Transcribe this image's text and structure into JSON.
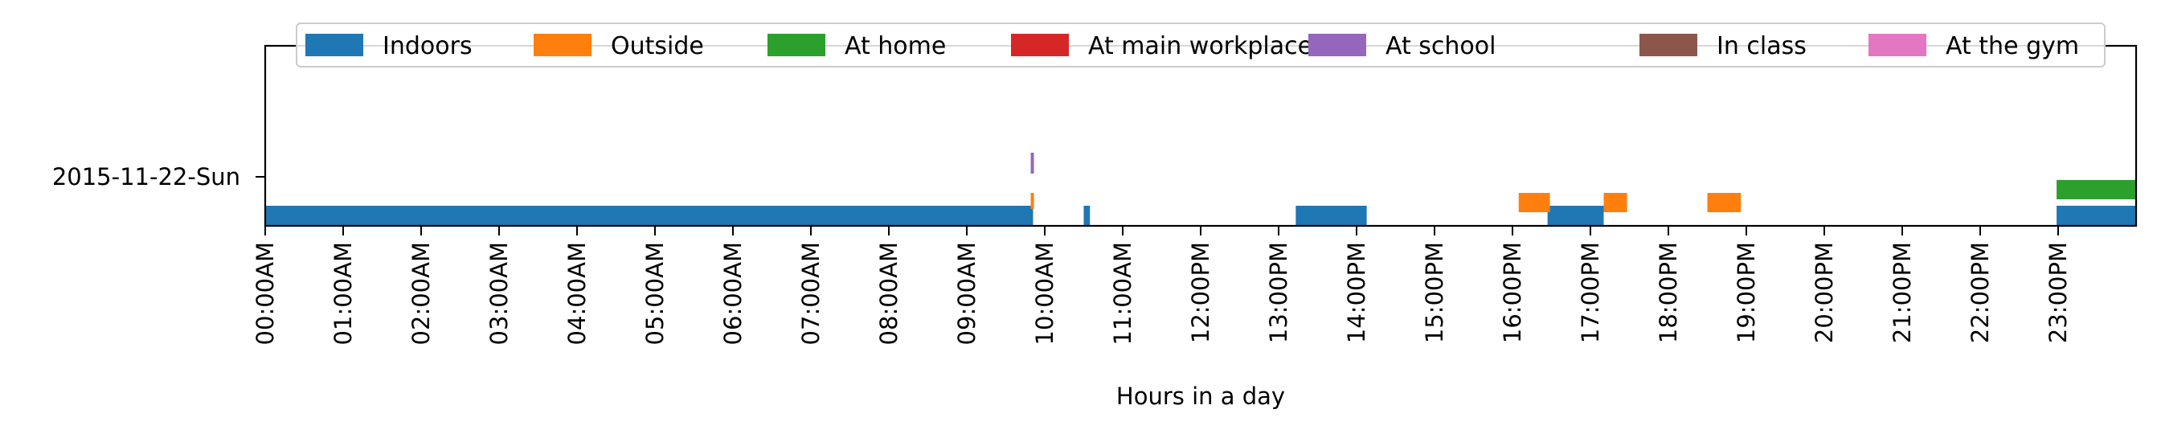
{
  "chart_data": {
    "type": "timeline",
    "xlabel": "Hours in a day",
    "ylabel": "",
    "title": "",
    "row_label": "2015-11-22-Sun",
    "xlim": [
      0,
      24
    ],
    "x_tick_labels": [
      "00:00AM",
      "01:00AM",
      "02:00AM",
      "03:00AM",
      "04:00AM",
      "05:00AM",
      "06:00AM",
      "07:00AM",
      "08:00AM",
      "09:00AM",
      "10:00AM",
      "11:00AM",
      "12:00PM",
      "13:00PM",
      "14:00PM",
      "15:00PM",
      "16:00PM",
      "17:00PM",
      "18:00PM",
      "19:00PM",
      "20:00PM",
      "21:00PM",
      "22:00PM",
      "23:00PM"
    ],
    "legend_position": "top",
    "series": [
      {
        "name": "Indoors",
        "color": "#1f77b4",
        "intervals": [
          [
            0.0,
            9.85
          ],
          [
            10.5,
            10.58
          ],
          [
            13.22,
            14.13
          ],
          [
            16.45,
            17.17
          ],
          [
            22.98,
            24.0
          ]
        ]
      },
      {
        "name": "Outside",
        "color": "#ff7f0e",
        "intervals": [
          [
            9.82,
            9.86
          ],
          [
            16.08,
            16.48
          ],
          [
            17.17,
            17.47
          ],
          [
            18.5,
            18.93
          ]
        ]
      },
      {
        "name": "At home",
        "color": "#2ca02c",
        "intervals": [
          [
            22.98,
            24.0
          ]
        ]
      },
      {
        "name": "At main workplace",
        "color": "#d62728",
        "intervals": []
      },
      {
        "name": "At school",
        "color": "#9467bd",
        "intervals": [
          [
            9.82,
            9.86
          ]
        ]
      },
      {
        "name": "In class",
        "color": "#8c564b",
        "intervals": []
      },
      {
        "name": "At the gym",
        "color": "#e377c2",
        "intervals": []
      }
    ]
  }
}
